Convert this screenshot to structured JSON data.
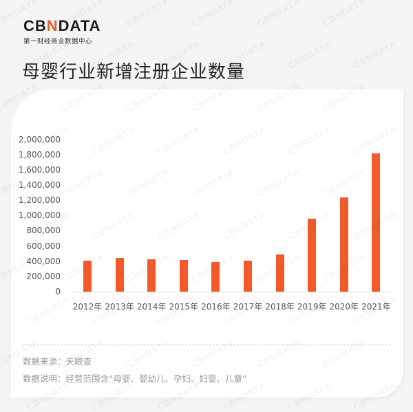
{
  "header": {
    "logo_left": "CB",
    "logo_accent": "N",
    "logo_right": "DATA",
    "logo_subtitle": "第一财经商业数据中心",
    "title": "母婴行业新增注册企业数量"
  },
  "watermark_text": "CBNDATA",
  "chart_data": {
    "type": "bar",
    "title": "母婴行业新增注册企业数量",
    "xlabel": "",
    "ylabel": "",
    "categories": [
      "2012年",
      "2013年",
      "2014年",
      "2015年",
      "2016年",
      "2017年",
      "2018年",
      "2019年",
      "2020年",
      "2021年"
    ],
    "values": [
      405000,
      444000,
      423000,
      415000,
      385000,
      403000,
      487000,
      961000,
      1237000,
      1813000
    ],
    "ylim": [
      0,
      2000000
    ],
    "yticks": [
      "0",
      "200,000",
      "400,000",
      "600,000",
      "800,000",
      "1,000,000",
      "1,200,000",
      "1,400,000",
      "1,600,000",
      "1,800,000",
      "2,000,000"
    ],
    "grid": false,
    "legend": null,
    "bar_color": "#F15A2B"
  },
  "footer": {
    "source": "数据来源：天眼查",
    "note": "数据说明：经营范围含“母婴、婴幼儿、孕妇、妇婴、儿童”"
  },
  "colors": {
    "accent": "#F15A2B",
    "background": "#F2F4F6",
    "card": "#FFFFFF"
  }
}
